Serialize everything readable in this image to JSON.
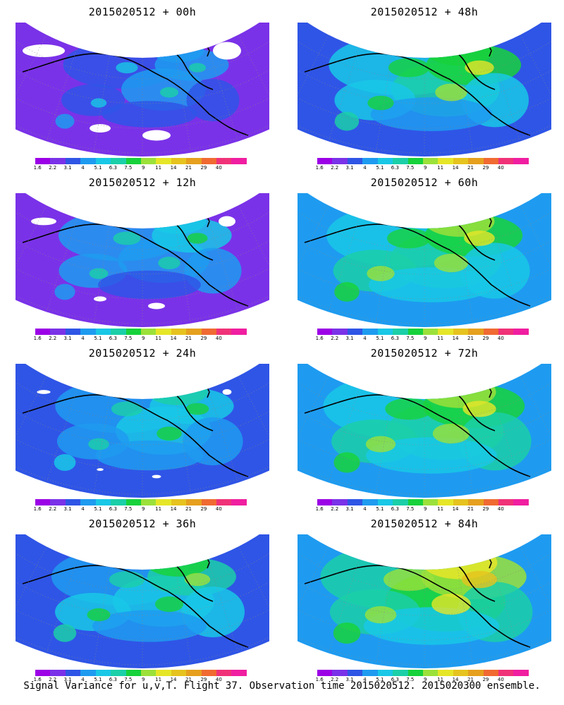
{
  "panels": [
    {
      "title": "2015020512 + 00h",
      "level": 0.25
    },
    {
      "title": "2015020512 + 48h",
      "level": 0.6
    },
    {
      "title": "2015020512 + 12h",
      "level": 0.35
    },
    {
      "title": "2015020512 + 60h",
      "level": 0.65
    },
    {
      "title": "2015020512 + 24h",
      "level": 0.42
    },
    {
      "title": "2015020512 + 72h",
      "level": 0.72
    },
    {
      "title": "2015020512 + 36h",
      "level": 0.5
    },
    {
      "title": "2015020512 + 84h",
      "level": 0.78
    }
  ],
  "colorbar": {
    "labels": [
      "1.6",
      "2.2",
      "3.1",
      "4",
      "5.1",
      "6.3",
      "7.5",
      "9",
      "11",
      "14",
      "21",
      "29",
      "40"
    ],
    "colors": [
      "#9b00e6",
      "#7a32e8",
      "#2f55e6",
      "#1e9bf0",
      "#19c8e6",
      "#1bcfa8",
      "#17d23b",
      "#9be13a",
      "#e6e628",
      "#e6c31e",
      "#e6a01e",
      "#f06a32",
      "#f03278",
      "#f01ea0"
    ]
  },
  "caption": "Signal Variance for u,v,T. Flight 37. Observation time 2015020512. 2015020300 ensemble."
}
